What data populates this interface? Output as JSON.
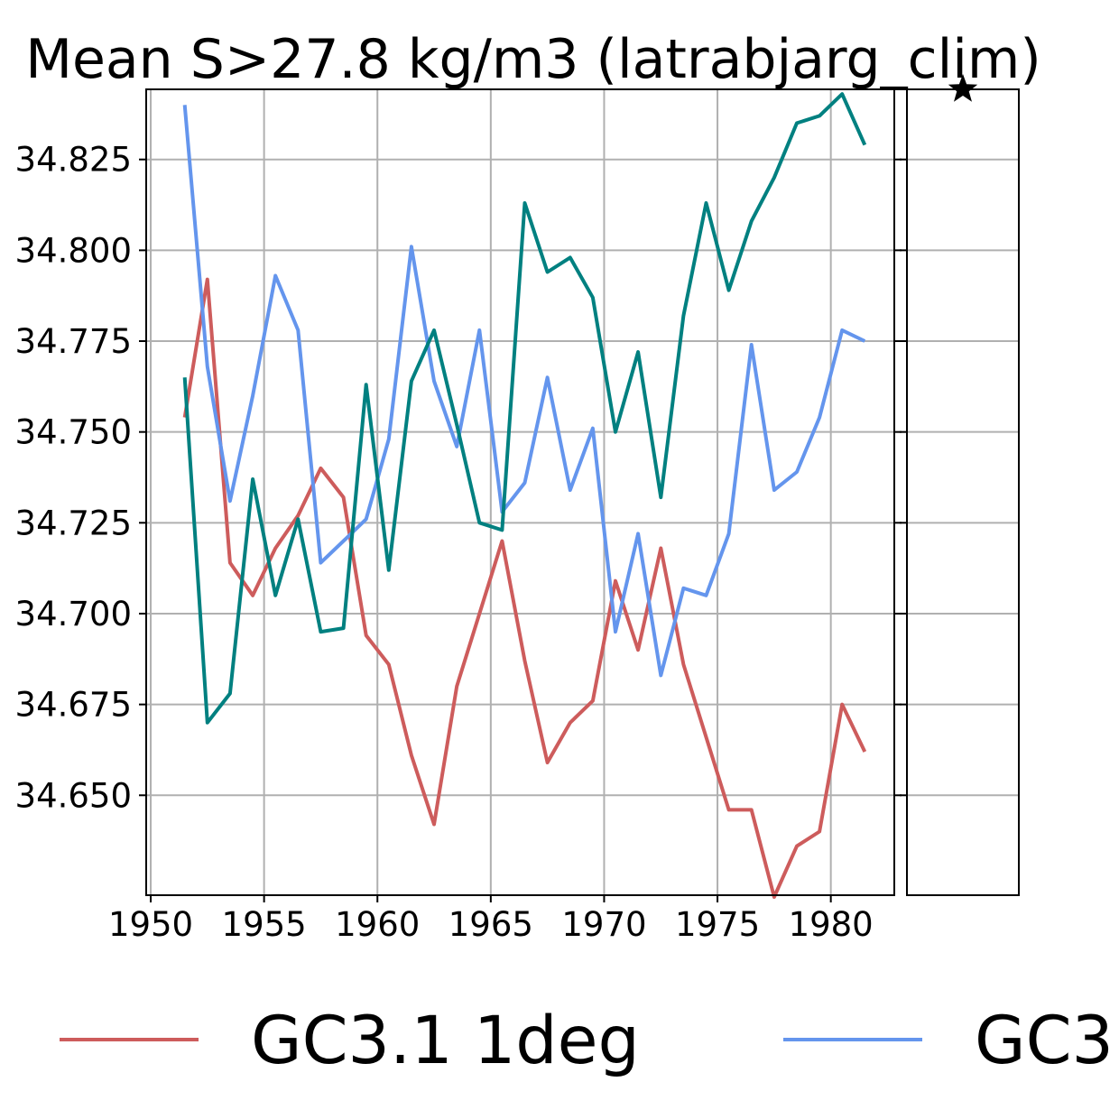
{
  "chart_data": {
    "type": "line",
    "title": "Mean S>27.8 kg/m3 (latrabjarg_clim)",
    "xlabel": "",
    "ylabel": "",
    "xlim": [
      1949.8,
      1982.8
    ],
    "ylim": [
      34.6225,
      34.8443
    ],
    "x_ticks": [
      1950,
      1955,
      1960,
      1965,
      1970,
      1975,
      1980
    ],
    "x_tick_labels": [
      "1950",
      "1955",
      "1960",
      "1965",
      "1970",
      "1975",
      "1980"
    ],
    "y_ticks": [
      34.65,
      34.675,
      34.7,
      34.725,
      34.75,
      34.775,
      34.8,
      34.825
    ],
    "y_tick_labels": [
      "34.650",
      "34.675",
      "34.700",
      "34.725",
      "34.750",
      "34.775",
      "34.800",
      "34.825"
    ],
    "grid": true,
    "legend_position": "bottom",
    "x": [
      1951.5,
      1952.5,
      1953.5,
      1954.5,
      1955.5,
      1956.5,
      1957.5,
      1958.5,
      1959.5,
      1960.5,
      1961.5,
      1962.5,
      1963.5,
      1964.5,
      1965.5,
      1966.5,
      1967.5,
      1968.5,
      1969.5,
      1970.5,
      1971.5,
      1972.5,
      1973.5,
      1974.5,
      1975.5,
      1976.5,
      1977.5,
      1978.5,
      1979.5,
      1980.5,
      1981.5
    ],
    "series": [
      {
        "name": "GC3.1 1deg",
        "color": "#cd5c5c",
        "values": [
          34.754,
          34.792,
          34.714,
          34.705,
          34.718,
          34.727,
          34.74,
          34.732,
          34.694,
          34.686,
          34.661,
          34.642,
          34.68,
          34.7,
          34.72,
          34.687,
          34.659,
          34.67,
          34.676,
          34.709,
          34.69,
          34.718,
          34.686,
          34.666,
          34.646,
          34.646,
          34.622,
          34.636,
          34.64,
          34.675,
          34.662
        ]
      },
      {
        "name": "GC3",
        "color": "#6495ed",
        "values": [
          34.84,
          34.768,
          34.731,
          34.76,
          34.793,
          34.778,
          34.714,
          34.72,
          34.726,
          34.748,
          34.801,
          34.764,
          34.746,
          34.778,
          34.728,
          34.736,
          34.765,
          34.734,
          34.751,
          34.695,
          34.722,
          34.683,
          34.707,
          34.705,
          34.722,
          34.774,
          34.734,
          34.739,
          34.754,
          34.778,
          34.775
        ]
      },
      {
        "color": "#008080",
        "values": [
          34.765,
          34.67,
          34.678,
          34.737,
          34.705,
          34.726,
          34.695,
          34.696,
          34.763,
          34.712,
          34.764,
          34.778,
          34.752,
          34.725,
          34.723,
          34.813,
          34.794,
          34.798,
          34.787,
          34.75,
          34.772,
          34.732,
          34.782,
          34.813,
          34.789,
          34.808,
          34.82,
          34.835,
          34.837,
          34.843,
          34.829
        ]
      }
    ],
    "side_panel": {
      "marker": "star",
      "marker_color": "#000000"
    }
  }
}
